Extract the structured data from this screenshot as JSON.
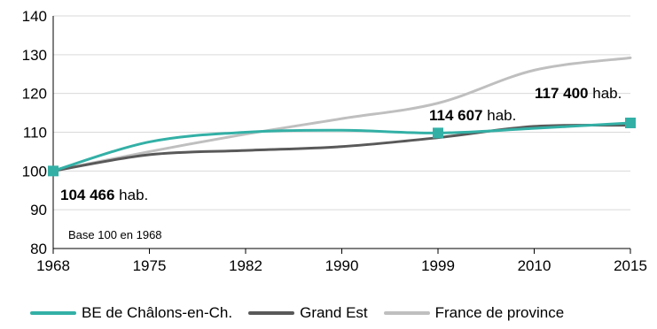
{
  "chart_data": {
    "type": "line",
    "x": [
      1968,
      1975,
      1982,
      1990,
      1999,
      2010,
      2015
    ],
    "ylim": [
      80,
      140
    ],
    "yticks": [
      80,
      90,
      100,
      110,
      120,
      130,
      140
    ],
    "series": [
      {
        "name": "BE de Châlons-en-Ch.",
        "color": "#33b0a6",
        "values": [
          100,
          107.5,
          110,
          110.5,
          109.8,
          111,
          112.4
        ]
      },
      {
        "name": "Grand Est",
        "color": "#595959",
        "values": [
          100,
          104.2,
          105.3,
          106.3,
          108.6,
          111.5,
          111.8
        ]
      },
      {
        "name": "France de province",
        "color": "#bfbfbf",
        "values": [
          100,
          105,
          109.5,
          113.5,
          117.5,
          126,
          129.2
        ]
      }
    ],
    "markers": [
      {
        "x": 1968,
        "y": 100
      },
      {
        "x": 1999,
        "y": 109.8
      },
      {
        "x": 2015,
        "y": 112.4
      }
    ],
    "annotations": [
      {
        "value": "104 466",
        "unit": "hab."
      },
      {
        "value": "114 607",
        "unit": "hab."
      },
      {
        "value": "117 400",
        "unit": "hab."
      }
    ],
    "note": "Base 100 en 1968",
    "grid": true,
    "legend_position": "bottom"
  }
}
